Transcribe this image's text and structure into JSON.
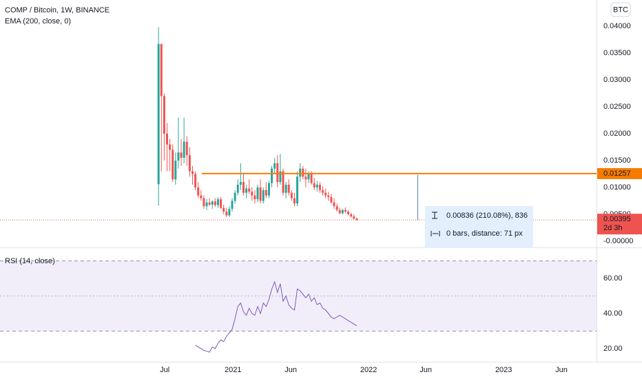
{
  "chart_data": [
    {
      "type": "candlestick",
      "title": "COMP / Bitcoin, 1W, BINANCE",
      "subtitle": "EMA (200, close, 0)",
      "currency_button": "BTC",
      "up_color": "#26a69a",
      "down_color": "#ef5350",
      "open": [
        0.0106,
        0.0367,
        0.027,
        0.02,
        0.018,
        0.017,
        0.0115,
        0.015,
        0.0165,
        0.0155,
        0.0185,
        0.016,
        0.013,
        0.0125,
        0.01,
        0.0085,
        0.008,
        0.0065,
        0.0072,
        0.0068,
        0.0074,
        0.0067,
        0.0078,
        0.0062,
        0.0055,
        0.0048,
        0.006,
        0.0075,
        0.009,
        0.0105,
        0.011,
        0.009,
        0.0098,
        0.0092,
        0.0085,
        0.0078,
        0.01,
        0.0075,
        0.0095,
        0.0085,
        0.0108,
        0.0135,
        0.0145,
        0.011,
        0.013,
        0.009,
        0.0105,
        0.009,
        0.008,
        0.007,
        0.012,
        0.0135,
        0.012,
        0.0115,
        0.0125,
        0.0108,
        0.01,
        0.0105,
        0.0095,
        0.009,
        0.0085,
        0.0082,
        0.0072,
        0.0065,
        0.0058,
        0.0052,
        0.0058,
        0.0055,
        0.005,
        0.0046,
        0.0042
      ],
      "high": [
        0.0398,
        0.0367,
        0.0275,
        0.022,
        0.019,
        0.018,
        0.0165,
        0.023,
        0.019,
        0.023,
        0.0195,
        0.0175,
        0.014,
        0.013,
        0.011,
        0.0095,
        0.0085,
        0.0078,
        0.008,
        0.0076,
        0.008,
        0.0082,
        0.0082,
        0.0068,
        0.0062,
        0.0065,
        0.008,
        0.0095,
        0.0115,
        0.0145,
        0.0125,
        0.0105,
        0.0115,
        0.01,
        0.0095,
        0.0105,
        0.0115,
        0.01,
        0.011,
        0.0112,
        0.014,
        0.0155,
        0.016,
        0.0162,
        0.0135,
        0.011,
        0.0115,
        0.0095,
        0.009,
        0.013,
        0.0145,
        0.014,
        0.0135,
        0.013,
        0.013,
        0.0118,
        0.0112,
        0.011,
        0.0102,
        0.0098,
        0.0092,
        0.0088,
        0.008,
        0.007,
        0.0062,
        0.006,
        0.0063,
        0.0058,
        0.0053,
        0.005,
        0.0044
      ],
      "low": [
        0.0066,
        0.013,
        0.015,
        0.013,
        0.013,
        0.011,
        0.0105,
        0.0135,
        0.014,
        0.0145,
        0.014,
        0.012,
        0.0105,
        0.0095,
        0.008,
        0.0075,
        0.006,
        0.0058,
        0.0065,
        0.006,
        0.0064,
        0.0062,
        0.006,
        0.005,
        0.0045,
        0.0045,
        0.0055,
        0.007,
        0.0085,
        0.0095,
        0.0085,
        0.008,
        0.0088,
        0.0075,
        0.007,
        0.0072,
        0.007,
        0.007,
        0.008,
        0.008,
        0.01,
        0.0125,
        0.01,
        0.0105,
        0.0085,
        0.008,
        0.0085,
        0.0075,
        0.0065,
        0.0065,
        0.011,
        0.0115,
        0.01,
        0.0108,
        0.0105,
        0.0095,
        0.0092,
        0.009,
        0.0085,
        0.008,
        0.0075,
        0.007,
        0.006,
        0.0055,
        0.005,
        0.005,
        0.0052,
        0.0048,
        0.0044,
        0.004,
        0.0038
      ],
      "close": [
        0.0367,
        0.027,
        0.02,
        0.018,
        0.017,
        0.0115,
        0.015,
        0.0165,
        0.0155,
        0.0185,
        0.016,
        0.013,
        0.0125,
        0.01,
        0.0085,
        0.008,
        0.0065,
        0.0072,
        0.0068,
        0.0074,
        0.0067,
        0.0078,
        0.0062,
        0.0055,
        0.0048,
        0.006,
        0.0075,
        0.009,
        0.0105,
        0.011,
        0.009,
        0.0098,
        0.0092,
        0.0085,
        0.0078,
        0.01,
        0.0075,
        0.0095,
        0.0085,
        0.0108,
        0.0135,
        0.0145,
        0.011,
        0.013,
        0.009,
        0.0105,
        0.009,
        0.008,
        0.007,
        0.012,
        0.0135,
        0.012,
        0.0115,
        0.0125,
        0.0108,
        0.01,
        0.0105,
        0.0095,
        0.009,
        0.0085,
        0.0082,
        0.0072,
        0.0065,
        0.0058,
        0.0052,
        0.0058,
        0.0055,
        0.005,
        0.0046,
        0.0042,
        0.00395
      ],
      "xlim": [
        -56,
        154.7
      ],
      "xticks": [
        {
          "value": 2.2,
          "label": "Jul"
        },
        {
          "value": 26.3,
          "label": "2021"
        },
        {
          "value": 46.7,
          "label": "Jun"
        },
        {
          "value": 74.2,
          "label": "2022"
        },
        {
          "value": 94.4,
          "label": "Jun"
        },
        {
          "value": 121.9,
          "label": "2023"
        },
        {
          "value": 142.3,
          "label": "Jun"
        }
      ],
      "ylim": [
        -0.00103,
        0.04487
      ],
      "yticks": [
        {
          "value": 0.04,
          "label": "0.04000"
        },
        {
          "value": 0.035,
          "label": "0.03500"
        },
        {
          "value": 0.03,
          "label": "0.03000"
        },
        {
          "value": 0.025,
          "label": "0.02500"
        },
        {
          "value": 0.02,
          "label": "0.02000"
        },
        {
          "value": 0.015,
          "label": "0.01500"
        },
        {
          "value": 0.01,
          "label": "0.01000"
        },
        {
          "value": 0.005,
          "label": "0.00500"
        },
        {
          "value": 0,
          "label": "-0.00000"
        }
      ],
      "horizontal_line": {
        "value": 0.01257,
        "label": "0.01257",
        "color": "#f57c00"
      },
      "last_price": {
        "value": 0.00395,
        "label": "0.00395",
        "countdown": "2d 3h",
        "color": "#ef5350"
      },
      "measure": {
        "price_text": "0.00836 (210.08%), 836",
        "bars_text": "0 bars, distance: 71 px"
      }
    },
    {
      "type": "line",
      "title": "RSI (14, close)",
      "color": "#7e57c2",
      "values": [
        null,
        null,
        null,
        null,
        null,
        null,
        null,
        null,
        null,
        null,
        null,
        null,
        null,
        22,
        21,
        20,
        19,
        18.5,
        18,
        21,
        20,
        23,
        25,
        24,
        27,
        29,
        31,
        37,
        44,
        46,
        41,
        39,
        43,
        40,
        39,
        44,
        40,
        46,
        44,
        48,
        54,
        58,
        52,
        57,
        47,
        50,
        45,
        43,
        42,
        54,
        53,
        51,
        49,
        51,
        47,
        49,
        45,
        46,
        43,
        42,
        40,
        38,
        37,
        38,
        39,
        38,
        37,
        36,
        35,
        34,
        33
      ],
      "ylim": [
        12.5,
        77.3
      ],
      "yticks": [
        {
          "value": 60,
          "label": "60.00"
        },
        {
          "value": 40,
          "label": "40.00"
        },
        {
          "value": 20,
          "label": "20.00"
        }
      ],
      "bands": {
        "upper": 70,
        "middle": 50,
        "lower": 30
      }
    }
  ]
}
